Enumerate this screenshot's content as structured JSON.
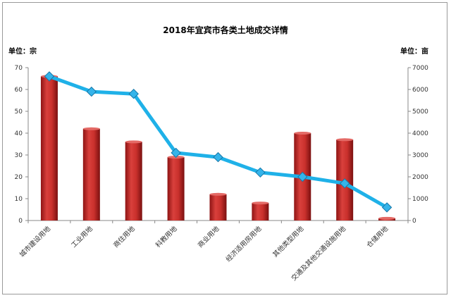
{
  "chart_data": {
    "type": "bar+line",
    "title": "2018年宜宾市各类土地成交详情",
    "left_unit_label": "单位：宗",
    "right_unit_label": "单位：亩",
    "categories": [
      "城市建设用地",
      "工业用地",
      "商住用地",
      "科教用地",
      "商业用地",
      "经济适用房用地",
      "其他类型用地",
      "交通及其他交通设施用地",
      "仓储用地"
    ],
    "series": [
      {
        "kind": "bar",
        "axis": "left",
        "values": [
          66,
          42,
          36,
          29,
          12,
          8,
          40,
          37,
          1
        ]
      },
      {
        "kind": "line",
        "axis": "right",
        "values": [
          6600,
          5900,
          5800,
          3100,
          2900,
          2200,
          2000,
          1700,
          600
        ]
      }
    ],
    "y_left": {
      "min": 0,
      "max": 70,
      "ticks": [
        0,
        10,
        20,
        30,
        40,
        50,
        60,
        70
      ]
    },
    "y_right": {
      "min": 0,
      "max": 7000,
      "ticks": [
        0,
        1000,
        2000,
        3000,
        4000,
        5000,
        6000,
        7000
      ]
    },
    "colors": {
      "bar": "#c0302f",
      "bar_dark": "#8e1414",
      "line": "#1fb1e8",
      "marker": "#1e9fdc"
    }
  }
}
